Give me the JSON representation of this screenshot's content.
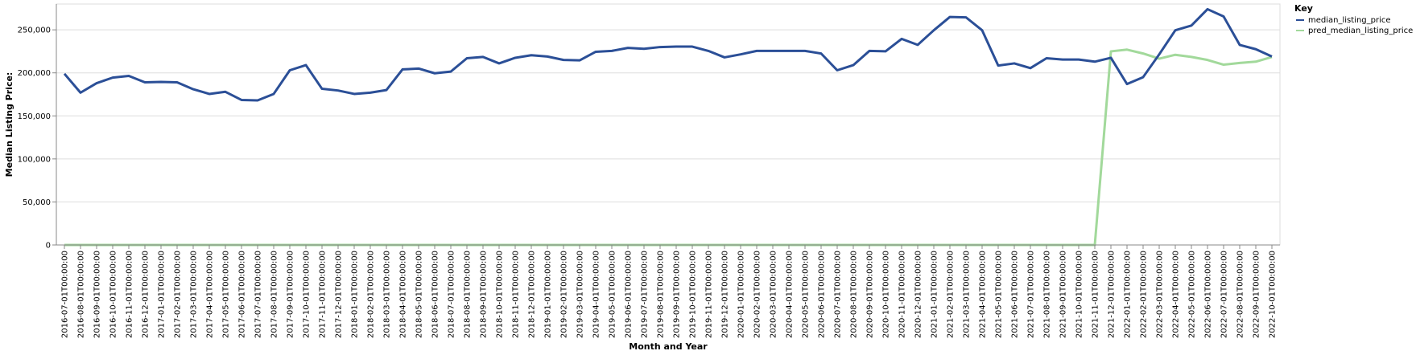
{
  "chart_data": {
    "type": "line",
    "xlabel": "Month and Year",
    "ylabel": "Median Listing Price:",
    "ylim": [
      0,
      280000
    ],
    "yticks": [
      0,
      50000,
      100000,
      150000,
      200000,
      250000
    ],
    "ytick_labels": [
      "0",
      "50,000",
      "100,000",
      "150,000",
      "200,000",
      "250,000"
    ],
    "grid": true,
    "legend": {
      "title": "Key",
      "position": "top-right"
    },
    "x": [
      "2016-07-01T00:00:00",
      "2016-08-01T00:00:00",
      "2016-09-01T00:00:00",
      "2016-10-01T00:00:00",
      "2016-11-01T00:00:00",
      "2016-12-01T00:00:00",
      "2017-01-01T00:00:00",
      "2017-02-01T00:00:00",
      "2017-03-01T00:00:00",
      "2017-04-01T00:00:00",
      "2017-05-01T00:00:00",
      "2017-06-01T00:00:00",
      "2017-07-01T00:00:00",
      "2017-08-01T00:00:00",
      "2017-09-01T00:00:00",
      "2017-10-01T00:00:00",
      "2017-11-01T00:00:00",
      "2017-12-01T00:00:00",
      "2018-01-01T00:00:00",
      "2018-02-01T00:00:00",
      "2018-03-01T00:00:00",
      "2018-04-01T00:00:00",
      "2018-05-01T00:00:00",
      "2018-06-01T00:00:00",
      "2018-07-01T00:00:00",
      "2018-08-01T00:00:00",
      "2018-09-01T00:00:00",
      "2018-10-01T00:00:00",
      "2018-11-01T00:00:00",
      "2018-12-01T00:00:00",
      "2019-01-01T00:00:00",
      "2019-02-01T00:00:00",
      "2019-03-01T00:00:00",
      "2019-04-01T00:00:00",
      "2019-05-01T00:00:00",
      "2019-06-01T00:00:00",
      "2019-07-01T00:00:00",
      "2019-08-01T00:00:00",
      "2019-09-01T00:00:00",
      "2019-10-01T00:00:00",
      "2019-11-01T00:00:00",
      "2019-12-01T00:00:00",
      "2020-01-01T00:00:00",
      "2020-02-01T00:00:00",
      "2020-03-01T00:00:00",
      "2020-04-01T00:00:00",
      "2020-05-01T00:00:00",
      "2020-06-01T00:00:00",
      "2020-07-01T00:00:00",
      "2020-08-01T00:00:00",
      "2020-09-01T00:00:00",
      "2020-10-01T00:00:00",
      "2020-11-01T00:00:00",
      "2020-12-01T00:00:00",
      "2021-01-01T00:00:00",
      "2021-02-01T00:00:00",
      "2021-03-01T00:00:00",
      "2021-04-01T00:00:00",
      "2021-05-01T00:00:00",
      "2021-06-01T00:00:00",
      "2021-07-01T00:00:00",
      "2021-08-01T00:00:00",
      "2021-09-01T00:00:00",
      "2021-10-01T00:00:00",
      "2021-11-01T00:00:00",
      "2021-12-01T00:00:00",
      "2022-01-01T00:00:00",
      "2022-02-01T00:00:00",
      "2022-03-01T00:00:00",
      "2022-04-01T00:00:00",
      "2022-05-01T00:00:00",
      "2022-06-01T00:00:00",
      "2022-07-01T00:00:00",
      "2022-08-01T00:00:00",
      "2022-09-01T00:00:00",
      "2022-10-01T00:00:00"
    ],
    "series": [
      {
        "name": "median_listing_price",
        "color": "#2b4f97",
        "values": [
          199000,
          177000,
          188000,
          194500,
          196500,
          189000,
          189500,
          189000,
          181000,
          175500,
          178000,
          168500,
          168000,
          175500,
          203000,
          209000,
          181500,
          179500,
          175500,
          177000,
          180000,
          204000,
          205000,
          199500,
          201500,
          217000,
          218500,
          211000,
          217500,
          220500,
          219000,
          215000,
          214500,
          224500,
          225500,
          229000,
          228000,
          230000,
          230500,
          230500,
          225500,
          218000,
          221500,
          225500,
          225500,
          225500,
          225500,
          222500,
          203000,
          209000,
          225500,
          225000,
          239500,
          232500,
          249500,
          265000,
          264500,
          249500,
          208500,
          211000,
          205500,
          217000,
          215500,
          215500,
          213000,
          217500,
          187000,
          195000,
          221500,
          249500,
          255000,
          274000,
          265500,
          232500,
          227500,
          219000
        ]
      },
      {
        "name": "pred_median_listing_price",
        "color": "#a2d99b",
        "values": [
          0,
          0,
          0,
          0,
          0,
          0,
          0,
          0,
          0,
          0,
          0,
          0,
          0,
          0,
          0,
          0,
          0,
          0,
          0,
          0,
          0,
          0,
          0,
          0,
          0,
          0,
          0,
          0,
          0,
          0,
          0,
          0,
          0,
          0,
          0,
          0,
          0,
          0,
          0,
          0,
          0,
          0,
          0,
          0,
          0,
          0,
          0,
          0,
          0,
          0,
          0,
          0,
          0,
          0,
          0,
          0,
          0,
          0,
          0,
          0,
          0,
          0,
          0,
          0,
          0,
          225000,
          227000,
          222500,
          216500,
          221000,
          218500,
          215000,
          209500,
          211500,
          213000,
          218500
        ]
      }
    ]
  }
}
